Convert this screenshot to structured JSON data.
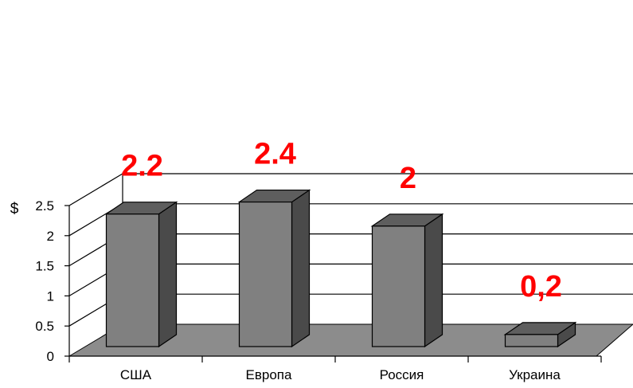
{
  "chart_data": {
    "type": "bar",
    "categories": [
      "США",
      "Европа",
      "Россия",
      "Украина"
    ],
    "values": [
      2.2,
      2.4,
      2.0,
      0.2
    ],
    "data_labels": [
      "2.2",
      "2.4",
      "2",
      "0,2"
    ],
    "ylabel": "$",
    "xlabel": "",
    "ylim": [
      0,
      2.5
    ],
    "yticks": [
      "0",
      "0.5",
      "1",
      "1.5",
      "2",
      "2.5"
    ],
    "grid": true,
    "legend": "none",
    "bar_front_color": "#808080",
    "bar_side_color": "#4a4a4a",
    "bar_top_color": "#5e5e5e",
    "floor_color": "#8c8c8c",
    "label_color": "#ff0000"
  }
}
